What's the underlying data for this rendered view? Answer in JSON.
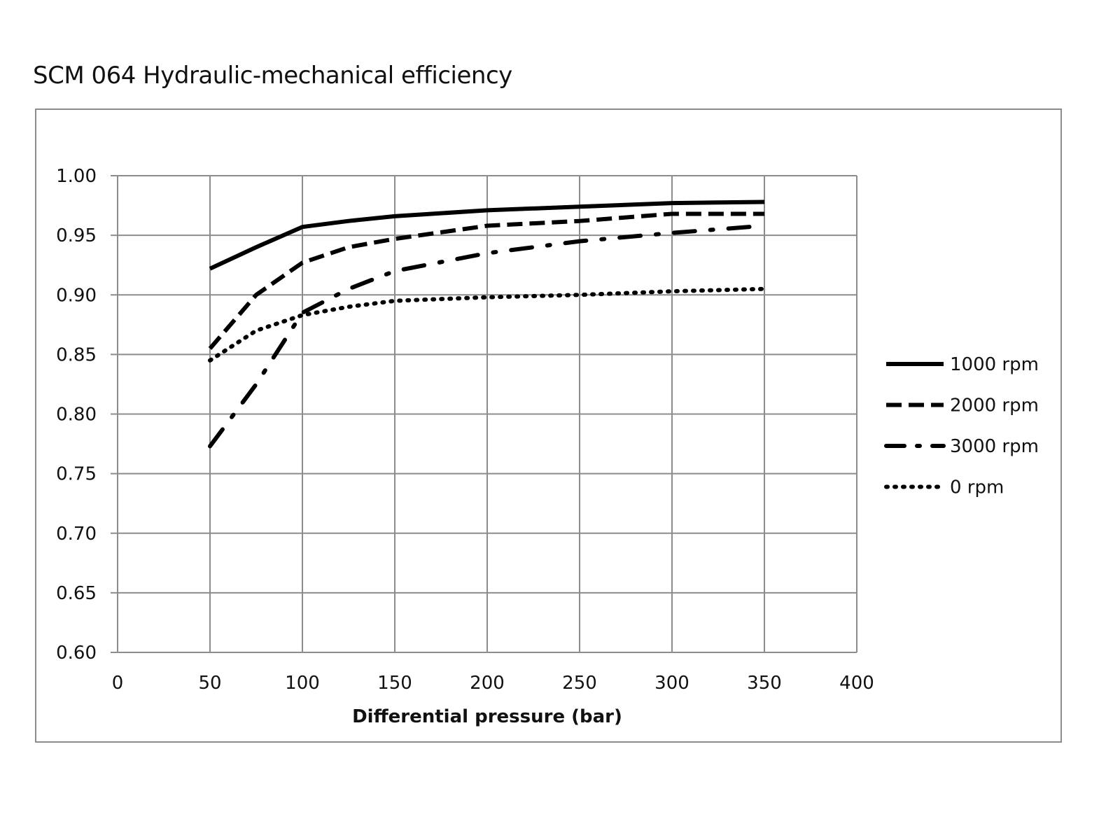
{
  "title": "SCM 064 Hydraulic-mechanical efficiency",
  "chart_data": {
    "type": "line",
    "title": "SCM 064 Hydraulic-mechanical efficiency",
    "xlabel": "Differential pressure (bar)",
    "ylabel": "",
    "xlim": [
      0,
      400
    ],
    "ylim": [
      0.6,
      1.0
    ],
    "xticks": [
      "0",
      "50",
      "100",
      "150",
      "200",
      "250",
      "300",
      "350",
      "400"
    ],
    "yticks": [
      "0.60",
      "0.65",
      "0.70",
      "0.75",
      "0.80",
      "0.85",
      "0.90",
      "0.95",
      "1.00"
    ],
    "grid": true,
    "legend_position": "right",
    "x": [
      50,
      75,
      100,
      125,
      150,
      200,
      250,
      300,
      350
    ],
    "series": [
      {
        "name": "1000 rpm",
        "style": "solid",
        "values": [
          0.922,
          0.94,
          0.957,
          0.962,
          0.966,
          0.971,
          0.974,
          0.977,
          0.978
        ]
      },
      {
        "name": "2000 rpm",
        "style": "dashed",
        "values": [
          0.855,
          0.9,
          0.927,
          0.94,
          0.947,
          0.958,
          0.962,
          0.968,
          0.968
        ]
      },
      {
        "name": "3000 rpm",
        "style": "dashdot",
        "values": [
          0.773,
          0.825,
          0.885,
          0.905,
          0.92,
          0.935,
          0.945,
          0.952,
          0.958
        ]
      },
      {
        "name": "0 rpm",
        "style": "dotted",
        "values": [
          0.845,
          0.87,
          0.883,
          0.89,
          0.895,
          0.898,
          0.9,
          0.903,
          0.905
        ]
      }
    ]
  }
}
